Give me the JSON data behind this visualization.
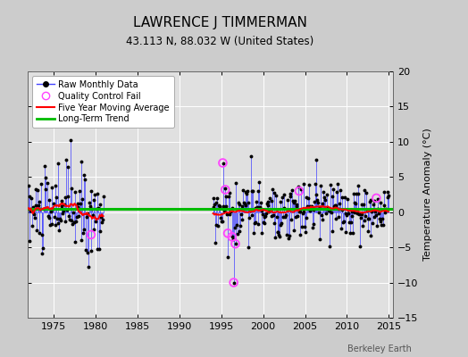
{
  "title": "LAWRENCE J TIMMERMAN",
  "subtitle": "43.113 N, 88.032 W (United States)",
  "ylabel": "Temperature Anomaly (°C)",
  "watermark": "Berkeley Earth",
  "xlim": [
    1972.0,
    2015.5
  ],
  "ylim": [
    -15,
    20
  ],
  "yticks": [
    -15,
    -10,
    -5,
    0,
    5,
    10,
    15,
    20
  ],
  "xticks": [
    1975,
    1980,
    1985,
    1990,
    1995,
    2000,
    2005,
    2010,
    2015
  ],
  "bg_color": "#cccccc",
  "plot_bg_color": "#e0e0e0",
  "grid_color": "#ffffff",
  "raw_monthly_color": "#4444ff",
  "dot_color": "#000000",
  "moving_avg_color": "#ff0000",
  "trend_color": "#00bb00",
  "qc_fail_color": "#ff44ff",
  "long_term_trend_y": 0.5
}
